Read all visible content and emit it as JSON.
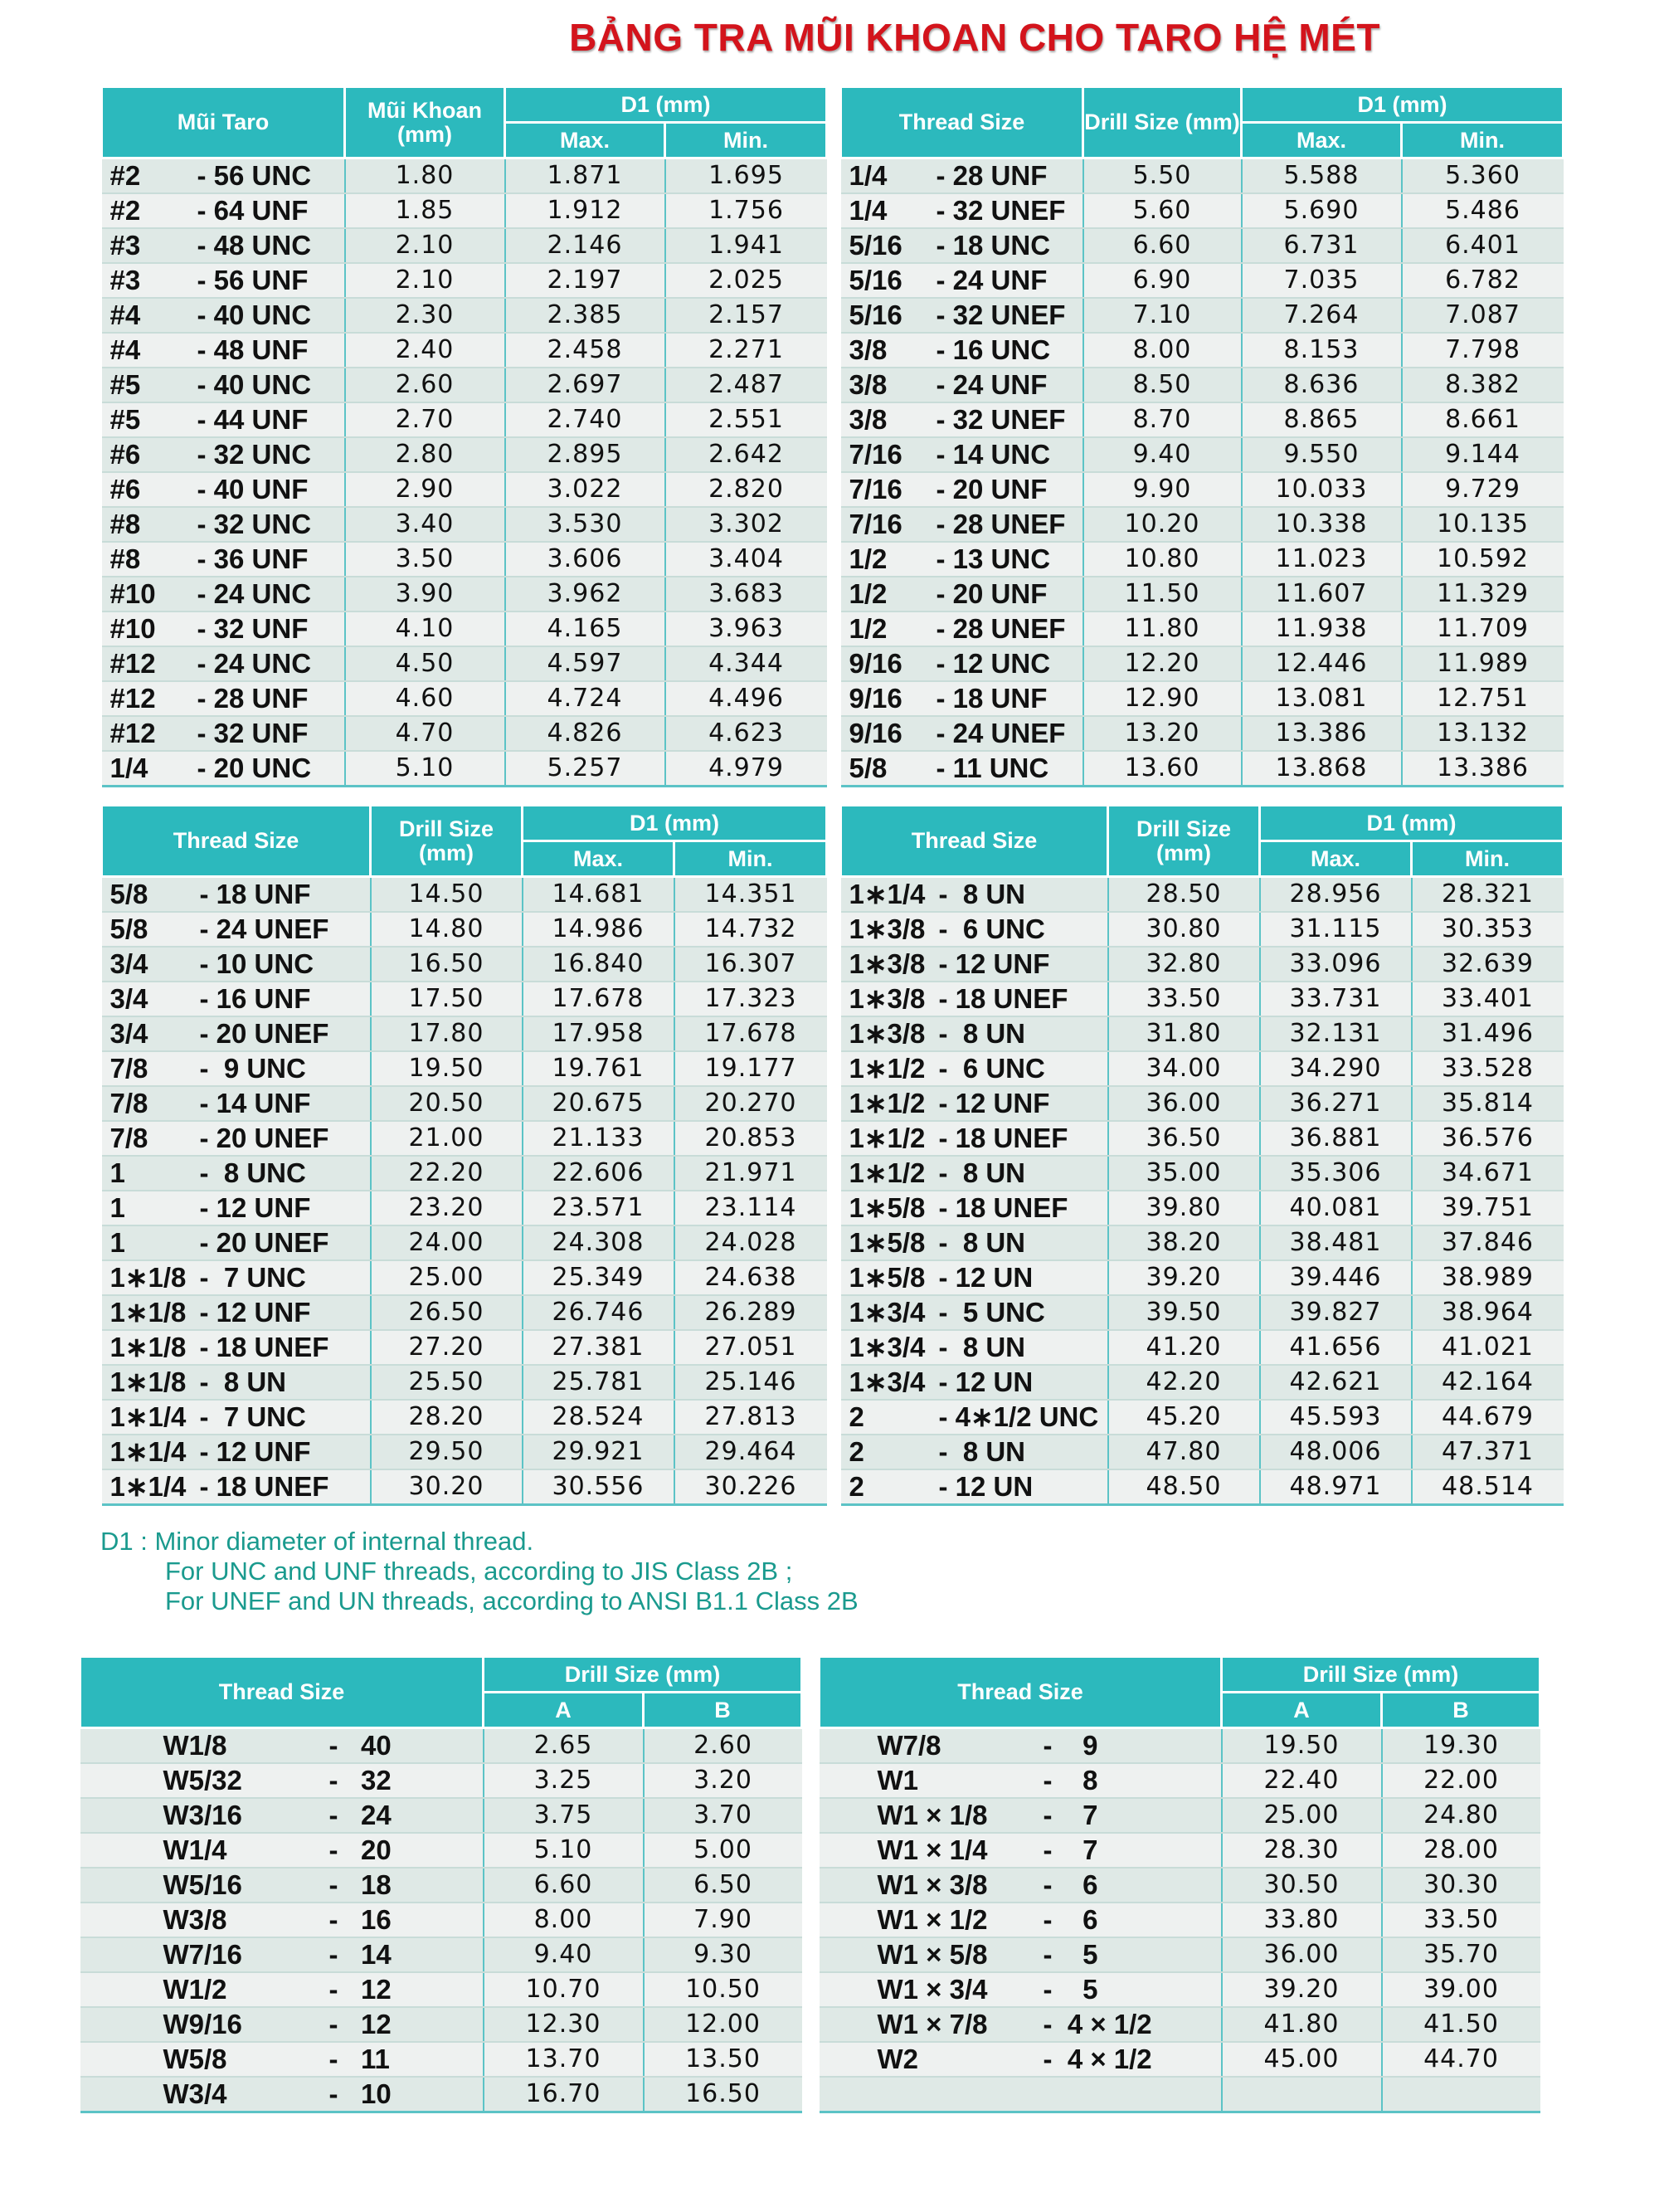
{
  "title": "BẢNG TRA MŨI KHOAN CHO TARO HỆ MÉT",
  "colors": {
    "header": "#2cb9bd",
    "title": "#d3141c",
    "notes": "#1a9a8e"
  },
  "tables": [
    {
      "headers": {
        "thread": "Mũi Taro",
        "drill": "Mũi Khoan (mm)",
        "d1": "D1 (mm)",
        "max": "Max.",
        "min": "Min."
      },
      "rows": [
        [
          "#2",
          "- 56 UNC",
          "1.80",
          "1.871",
          "1.695"
        ],
        [
          "#2",
          "- 64 UNF",
          "1.85",
          "1.912",
          "1.756"
        ],
        [
          "#3",
          "- 48 UNC",
          "2.10",
          "2.146",
          "1.941"
        ],
        [
          "#3",
          "- 56 UNF",
          "2.10",
          "2.197",
          "2.025"
        ],
        [
          "#4",
          "- 40 UNC",
          "2.30",
          "2.385",
          "2.157"
        ],
        [
          "#4",
          "- 48 UNF",
          "2.40",
          "2.458",
          "2.271"
        ],
        [
          "#5",
          "- 40 UNC",
          "2.60",
          "2.697",
          "2.487"
        ],
        [
          "#5",
          "- 44 UNF",
          "2.70",
          "2.740",
          "2.551"
        ],
        [
          "#6",
          "- 32 UNC",
          "2.80",
          "2.895",
          "2.642"
        ],
        [
          "#6",
          "- 40 UNF",
          "2.90",
          "3.022",
          "2.820"
        ],
        [
          "#8",
          "- 32 UNC",
          "3.40",
          "3.530",
          "3.302"
        ],
        [
          "#8",
          "- 36 UNF",
          "3.50",
          "3.606",
          "3.404"
        ],
        [
          "#10",
          "- 24 UNC",
          "3.90",
          "3.962",
          "3.683"
        ],
        [
          "#10",
          "- 32 UNF",
          "4.10",
          "4.165",
          "3.963"
        ],
        [
          "#12",
          "- 24 UNC",
          "4.50",
          "4.597",
          "4.344"
        ],
        [
          "#12",
          "- 28 UNF",
          "4.60",
          "4.724",
          "4.496"
        ],
        [
          "#12",
          "- 32 UNF",
          "4.70",
          "4.826",
          "4.623"
        ],
        [
          "1/4",
          "- 20 UNC",
          "5.10",
          "5.257",
          "4.979"
        ]
      ]
    },
    {
      "headers": {
        "thread": "Thread Size",
        "drill": "Drill Size (mm)",
        "d1": "D1 (mm)",
        "max": "Max.",
        "min": "Min."
      },
      "rows": [
        [
          "1/4",
          "- 28 UNF",
          "5.50",
          "5.588",
          "5.360"
        ],
        [
          "1/4",
          "- 32 UNEF",
          "5.60",
          "5.690",
          "5.486"
        ],
        [
          "5/16",
          "- 18 UNC",
          "6.60",
          "6.731",
          "6.401"
        ],
        [
          "5/16",
          "- 24 UNF",
          "6.90",
          "7.035",
          "6.782"
        ],
        [
          "5/16",
          "- 32 UNEF",
          "7.10",
          "7.264",
          "7.087"
        ],
        [
          "3/8",
          "- 16 UNC",
          "8.00",
          "8.153",
          "7.798"
        ],
        [
          "3/8",
          "- 24 UNF",
          "8.50",
          "8.636",
          "8.382"
        ],
        [
          "3/8",
          "- 32 UNEF",
          "8.70",
          "8.865",
          "8.661"
        ],
        [
          "7/16",
          "- 14 UNC",
          "9.40",
          "9.550",
          "9.144"
        ],
        [
          "7/16",
          "- 20 UNF",
          "9.90",
          "10.033",
          "9.729"
        ],
        [
          "7/16",
          "- 28 UNEF",
          "10.20",
          "10.338",
          "10.135"
        ],
        [
          "1/2",
          "- 13 UNC",
          "10.80",
          "11.023",
          "10.592"
        ],
        [
          "1/2",
          "- 20 UNF",
          "11.50",
          "11.607",
          "11.329"
        ],
        [
          "1/2",
          "- 28 UNEF",
          "11.80",
          "11.938",
          "11.709"
        ],
        [
          "9/16",
          "- 12 UNC",
          "12.20",
          "12.446",
          "11.989"
        ],
        [
          "9/16",
          "- 18 UNF",
          "12.90",
          "13.081",
          "12.751"
        ],
        [
          "9/16",
          "- 24 UNEF",
          "13.20",
          "13.386",
          "13.132"
        ],
        [
          "5/8",
          "- 11 UNC",
          "13.60",
          "13.868",
          "13.386"
        ]
      ]
    },
    {
      "headers": {
        "thread": "Thread Size",
        "drill": "Drill Size (mm)",
        "d1": "D1 (mm)",
        "max": "Max.",
        "min": "Min."
      },
      "rows": [
        [
          "5/8",
          "- 18 UNF",
          "14.50",
          "14.681",
          "14.351"
        ],
        [
          "5/8",
          "- 24 UNEF",
          "14.80",
          "14.986",
          "14.732"
        ],
        [
          "3/4",
          "- 10 UNC",
          "16.50",
          "16.840",
          "16.307"
        ],
        [
          "3/4",
          "- 16 UNF",
          "17.50",
          "17.678",
          "17.323"
        ],
        [
          "3/4",
          "- 20 UNEF",
          "17.80",
          "17.958",
          "17.678"
        ],
        [
          "7/8",
          "-  9 UNC",
          "19.50",
          "19.761",
          "19.177"
        ],
        [
          "7/8",
          "- 14 UNF",
          "20.50",
          "20.675",
          "20.270"
        ],
        [
          "7/8",
          "- 20 UNEF",
          "21.00",
          "21.133",
          "20.853"
        ],
        [
          "1",
          "-  8 UNC",
          "22.20",
          "22.606",
          "21.971"
        ],
        [
          "1",
          "- 12 UNF",
          "23.20",
          "23.571",
          "23.114"
        ],
        [
          "1",
          "- 20 UNEF",
          "24.00",
          "24.308",
          "24.028"
        ],
        [
          "1∗1/8",
          "-  7 UNC",
          "25.00",
          "25.349",
          "24.638"
        ],
        [
          "1∗1/8",
          "- 12 UNF",
          "26.50",
          "26.746",
          "26.289"
        ],
        [
          "1∗1/8",
          "- 18 UNEF",
          "27.20",
          "27.381",
          "27.051"
        ],
        [
          "1∗1/8",
          "-  8 UN",
          "25.50",
          "25.781",
          "25.146"
        ],
        [
          "1∗1/4",
          "-  7 UNC",
          "28.20",
          "28.524",
          "27.813"
        ],
        [
          "1∗1/4",
          "- 12 UNF",
          "29.50",
          "29.921",
          "29.464"
        ],
        [
          "1∗1/4",
          "- 18 UNEF",
          "30.20",
          "30.556",
          "30.226"
        ]
      ]
    },
    {
      "headers": {
        "thread": "Thread Size",
        "drill": "Drill Size (mm)",
        "d1": "D1 (mm)",
        "max": "Max.",
        "min": "Min."
      },
      "rows": [
        [
          "1∗1/4",
          "-  8 UN",
          "28.50",
          "28.956",
          "28.321"
        ],
        [
          "1∗3/8",
          "-  6 UNC",
          "30.80",
          "31.115",
          "30.353"
        ],
        [
          "1∗3/8",
          "- 12 UNF",
          "32.80",
          "33.096",
          "32.639"
        ],
        [
          "1∗3/8",
          "- 18 UNEF",
          "33.50",
          "33.731",
          "33.401"
        ],
        [
          "1∗3/8",
          "-  8 UN",
          "31.80",
          "32.131",
          "31.496"
        ],
        [
          "1∗1/2",
          "-  6 UNC",
          "34.00",
          "34.290",
          "33.528"
        ],
        [
          "1∗1/2",
          "- 12 UNF",
          "36.00",
          "36.271",
          "35.814"
        ],
        [
          "1∗1/2",
          "- 18 UNEF",
          "36.50",
          "36.881",
          "36.576"
        ],
        [
          "1∗1/2",
          "-  8 UN",
          "35.00",
          "35.306",
          "34.671"
        ],
        [
          "1∗5/8",
          "- 18 UNEF",
          "39.80",
          "40.081",
          "39.751"
        ],
        [
          "1∗5/8",
          "-  8 UN",
          "38.20",
          "38.481",
          "37.846"
        ],
        [
          "1∗5/8",
          "- 12 UN",
          "39.20",
          "39.446",
          "38.989"
        ],
        [
          "1∗3/4",
          "-  5 UNC",
          "39.50",
          "39.827",
          "38.964"
        ],
        [
          "1∗3/4",
          "-  8 UN",
          "41.20",
          "41.656",
          "41.021"
        ],
        [
          "1∗3/4",
          "- 12 UN",
          "42.20",
          "42.621",
          "42.164"
        ],
        [
          "2",
          "- 4∗1/2 UNC",
          "45.20",
          "45.593",
          "44.679"
        ],
        [
          "2",
          "-  8 UN",
          "47.80",
          "48.006",
          "47.371"
        ],
        [
          "2",
          "- 12 UN",
          "48.50",
          "48.971",
          "48.514"
        ]
      ]
    }
  ],
  "notes": {
    "label": "D1 :",
    "line1": "Minor diameter of internal thread.",
    "line2": "For UNC and UNF threads, according to JIS Class 2B ;",
    "line3": "For UNEF and UN threads, according to ANSI B1.1 Class 2B"
  },
  "w_tables": [
    {
      "headers": {
        "thread": "Thread Size",
        "drill": "Drill Size (mm)",
        "a": "A",
        "b": "B"
      },
      "rows": [
        [
          "W1/8",
          "-   40",
          "2.65",
          "2.60"
        ],
        [
          "W5/32",
          "-   32",
          "3.25",
          "3.20"
        ],
        [
          "W3/16",
          "-   24",
          "3.75",
          "3.70"
        ],
        [
          "W1/4",
          "-   20",
          "5.10",
          "5.00"
        ],
        [
          "W5/16",
          "-   18",
          "6.60",
          "6.50"
        ],
        [
          "W3/8",
          "-   16",
          "8.00",
          "7.90"
        ],
        [
          "W7/16",
          "-   14",
          "9.40",
          "9.30"
        ],
        [
          "W1/2",
          "-   12",
          "10.70",
          "10.50"
        ],
        [
          "W9/16",
          "-   12",
          "12.30",
          "12.00"
        ],
        [
          "W5/8",
          "-   11",
          "13.70",
          "13.50"
        ],
        [
          "W3/4",
          "-   10",
          "16.70",
          "16.50"
        ]
      ]
    },
    {
      "headers": {
        "thread": "Thread Size",
        "drill": "Drill Size (mm)",
        "a": "A",
        "b": "B"
      },
      "rows": [
        [
          "W7/8",
          "-    9",
          "19.50",
          "19.30"
        ],
        [
          "W1",
          "-    8",
          "22.40",
          "22.00"
        ],
        [
          "W1 × 1/8",
          "-    7",
          "25.00",
          "24.80"
        ],
        [
          "W1 × 1/4",
          "-    7",
          "28.30",
          "28.00"
        ],
        [
          "W1 × 3/8",
          "-    6",
          "30.50",
          "30.30"
        ],
        [
          "W1 × 1/2",
          "-    6",
          "33.80",
          "33.50"
        ],
        [
          "W1 × 5/8",
          "-    5",
          "36.00",
          "35.70"
        ],
        [
          "W1 × 3/4",
          "-    5",
          "39.20",
          "39.00"
        ],
        [
          "W1 × 7/8",
          "-  4 × 1/2",
          "41.80",
          "41.50"
        ],
        [
          "W2",
          "-  4 × 1/2",
          "45.00",
          "44.70"
        ],
        [
          "",
          "",
          "",
          ""
        ]
      ]
    }
  ]
}
